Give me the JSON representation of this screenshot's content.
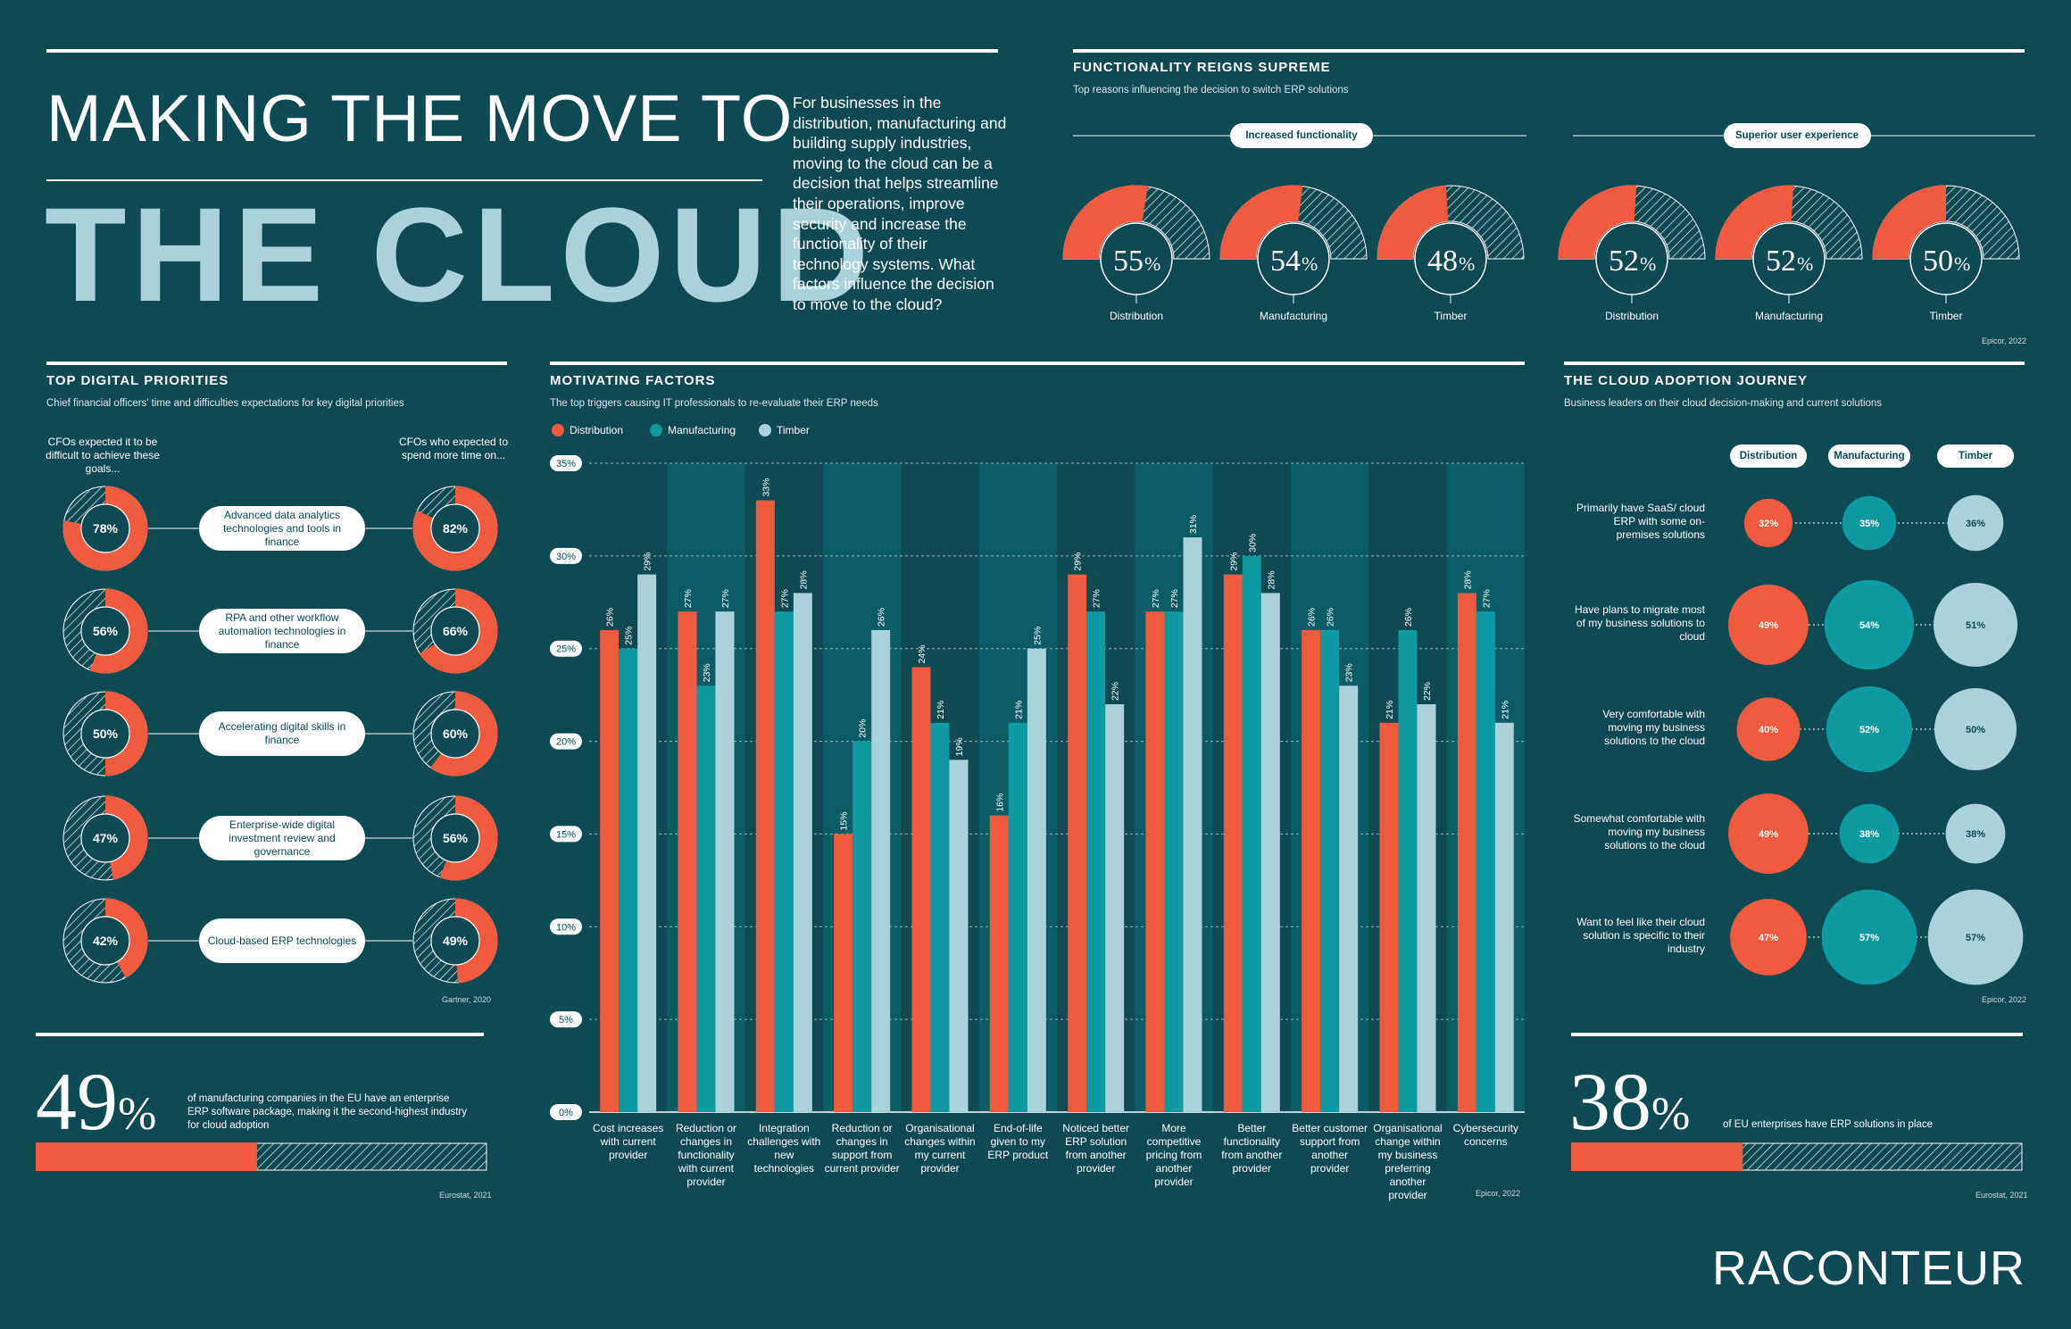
{
  "header": {
    "title_line1": "MAKING THE MOVE TO",
    "title_line2": "THE CLOUD",
    "intro": "For businesses in the distribution, manufacturing and building supply industries, moving to the cloud can be a decision that helps streamline their operations, improve security and increase the functionality of their technology systems. What factors influence the decision to move to the cloud?"
  },
  "colors": {
    "background": "#0d4a51",
    "distribution": "#f05a3e",
    "manufacturing": "#0e9aa0",
    "timber": "#a9d3d8"
  },
  "functionality": {
    "title": "FUNCTIONALITY REIGNS SUPREME",
    "subtitle": "Top reasons influencing the decision to switch ERP solutions",
    "source": "Epicor, 2022",
    "groups": [
      {
        "label": "Increased functionality",
        "items": [
          {
            "label": "Distribution",
            "value": 55,
            "value_text": "55"
          },
          {
            "label": "Manufacturing",
            "value": 54,
            "value_text": "54"
          },
          {
            "label": "Timber",
            "value": 48,
            "value_text": "48"
          }
        ]
      },
      {
        "label": "Superior user experience",
        "items": [
          {
            "label": "Distribution",
            "value": 52,
            "value_text": "52"
          },
          {
            "label": "Manufacturing",
            "value": 52,
            "value_text": "52"
          },
          {
            "label": "Timber",
            "value": 50,
            "value_text": "50"
          }
        ]
      }
    ]
  },
  "priorities": {
    "title": "TOP DIGITAL PRIORITIES",
    "subtitle": "Chief financial officers' time and difficulties expectations for key digital priorities",
    "left_header": "CFOs expected it to be difficult to achieve these goals...",
    "right_header": "CFOs who expected to spend more time on...",
    "source": "Gartner, 2020",
    "rows": [
      {
        "label": "Advanced data analytics technologies and tools in finance",
        "difficult": 78,
        "difficult_text": "78%",
        "time": 82,
        "time_text": "82%"
      },
      {
        "label": "RPA and other workflow automation technologies in finance",
        "difficult": 56,
        "difficult_text": "56%",
        "time": 66,
        "time_text": "66%"
      },
      {
        "label": "Accelerating digital skills in finance",
        "difficult": 50,
        "difficult_text": "50%",
        "time": 60,
        "time_text": "60%"
      },
      {
        "label": "Enterprise-wide digital investment review and governance",
        "difficult": 47,
        "difficult_text": "47%",
        "time": 56,
        "time_text": "56%"
      },
      {
        "label": "Cloud-based ERP technologies",
        "difficult": 42,
        "difficult_text": "42%",
        "time": 49,
        "time_text": "49%"
      }
    ]
  },
  "stat_left": {
    "number": "49",
    "pct": "%",
    "value": 49,
    "text": "of manufacturing companies in the EU have an enterprise ERP software package, making it the second-highest industry for cloud adoption",
    "source": "Eurostat, 2021"
  },
  "stat_right": {
    "number": "38",
    "pct": "%",
    "value": 38,
    "text": "of EU enterprises have ERP solutions in place",
    "source": "Eurostat, 2021"
  },
  "motivating": {
    "title": "MOTIVATING FACTORS",
    "subtitle": "The top triggers causing IT professionals to re-evaluate their ERP needs",
    "source": "Epicor, 2022"
  },
  "chart_data": {
    "type": "bar",
    "title": "MOTIVATING FACTORS",
    "ylim": [
      0,
      35
    ],
    "yticks": [
      0,
      5,
      10,
      15,
      20,
      25,
      30,
      35
    ],
    "ytick_labels": [
      "0%",
      "5%",
      "10%",
      "15%",
      "20%",
      "25%",
      "30%",
      "35%"
    ],
    "grid": true,
    "legend": "top-left",
    "categories": [
      "Cost increases with current provider",
      "Reduction or changes in functionality with current provider",
      "Integration challenges with new technologies",
      "Reduction or changes in support from current provider",
      "Organisational changes within my current provider",
      "End-of-life given to my ERP product",
      "Noticed better ERP solution from another provider",
      "More competitive pricing from another provider",
      "Better functionality from another provider",
      "Better customer support from another provider",
      "Organisational change within my business preferring another provider",
      "Cybersecurity concerns"
    ],
    "series": [
      {
        "name": "Distribution",
        "values": [
          26,
          27,
          33,
          15,
          24,
          16,
          29,
          27,
          29,
          26,
          21,
          28
        ]
      },
      {
        "name": "Manufacturing",
        "values": [
          25,
          23,
          27,
          20,
          21,
          21,
          27,
          27,
          30,
          26,
          26,
          27
        ]
      },
      {
        "name": "Timber",
        "values": [
          29,
          27,
          28,
          26,
          19,
          25,
          22,
          31,
          28,
          23,
          22,
          21
        ]
      }
    ]
  },
  "journey": {
    "title": "THE CLOUD ADOPTION JOURNEY",
    "subtitle": "Business leaders on their cloud decision-making and current solutions",
    "source": "Epicor, 2022",
    "columns": [
      "Distribution",
      "Manufacturing",
      "Timber"
    ],
    "rows": [
      {
        "label": "Primarily have SaaS/ cloud ERP with some on-premises solutions",
        "values": [
          32,
          35,
          36
        ],
        "texts": [
          "32%",
          "35%",
          "36%"
        ]
      },
      {
        "label": "Have plans to migrate most of my business solutions to cloud",
        "values": [
          49,
          54,
          51
        ],
        "texts": [
          "49%",
          "54%",
          "51%"
        ]
      },
      {
        "label": "Very comfortable with moving my business solutions to the cloud",
        "values": [
          40,
          52,
          50
        ],
        "texts": [
          "40%",
          "52%",
          "50%"
        ]
      },
      {
        "label": "Somewhat comfortable with moving my business solutions to the cloud",
        "values": [
          49,
          38,
          38
        ],
        "texts": [
          "49%",
          "38%",
          "38%"
        ]
      },
      {
        "label": "Want to feel like their cloud solution is specific to their industry",
        "values": [
          47,
          57,
          57
        ],
        "texts": [
          "47%",
          "57%",
          "57%"
        ]
      }
    ]
  },
  "logo": "RACONTEUR"
}
